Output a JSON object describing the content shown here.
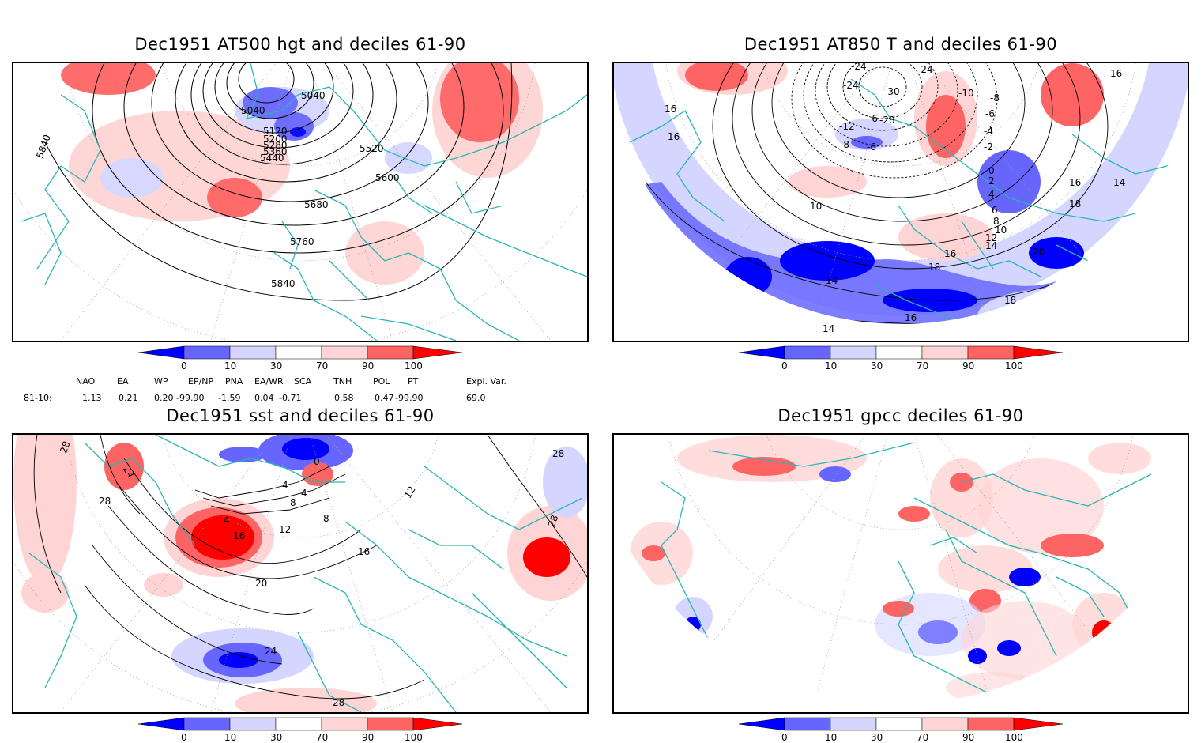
{
  "panels": [
    {
      "id": "p1",
      "title": "Dec1951 AT500 hgt and deciles 61-90",
      "contour_labels": [
        "5040",
        "5040",
        "5120",
        "5200",
        "5280",
        "5360",
        "5440",
        "5520",
        "5600",
        "5680",
        "5760",
        "5840",
        "5840"
      ]
    },
    {
      "id": "p2",
      "title": "Dec1951 AT850 T and deciles 61-90",
      "contour_labels": [
        "-24",
        "-24",
        "-24",
        "-28",
        "-30",
        "-12",
        "-6",
        "-8",
        "-6",
        "-10",
        "-8",
        "-6",
        "-4",
        "-2",
        "0",
        "2",
        "4",
        "6",
        "8",
        "10",
        "12",
        "14",
        "16",
        "18",
        "20",
        "16",
        "16",
        "16",
        "16",
        "14",
        "18",
        "16",
        "18",
        "10",
        "14",
        "14"
      ]
    },
    {
      "id": "p3",
      "title": "Dec1951 sst and deciles 61-90",
      "contour_labels": [
        "28",
        "24",
        "28",
        "0",
        "4",
        "4",
        "4",
        "8",
        "12",
        "16",
        "16",
        "20",
        "24",
        "28",
        "28",
        "28",
        "12",
        "8"
      ]
    },
    {
      "id": "p4",
      "title": "Dec1951 gpcc deciles 61-90",
      "contour_labels": []
    }
  ],
  "colorbar": {
    "tick_labels": [
      "0",
      "10",
      "30",
      "70",
      "90",
      "100"
    ],
    "colors": [
      "#0000ff",
      "#6666ff",
      "#d4d6ff",
      "#ffffff",
      "#ffd4d4",
      "#ff6464",
      "#ff0000"
    ]
  },
  "teleconnections": {
    "row_label": "81-10:",
    "names": [
      "NAO",
      "EA",
      "WP",
      "EP/NP",
      "PNA",
      "EA/WR",
      "SCA",
      "TNH",
      "POL",
      "PT",
      "Expl. Var."
    ],
    "values": [
      "1.13",
      "0.21",
      "0.20",
      "-99.90",
      "-1.59",
      "0.04",
      "-0.71",
      "0.58",
      "0.47",
      "-99.90",
      "69.0"
    ]
  },
  "colors": {
    "land_outline": "#2ab5b5",
    "frame": "#000000",
    "contour": "#000000",
    "grid": "#a0a0a0"
  }
}
